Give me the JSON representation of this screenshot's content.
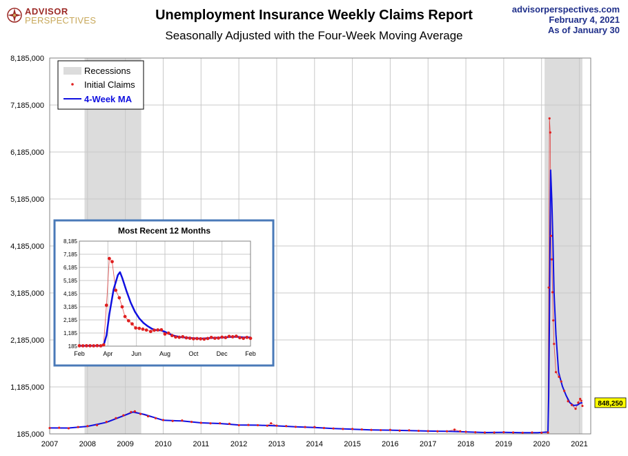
{
  "header": {
    "logo_line1": "ADVISOR",
    "logo_line2": "PERSPECTIVES",
    "title": "Unemployment Insurance Weekly Claims Report",
    "subtitle": "Seasonally Adjusted with the Four-Week Moving Average",
    "site": "advisorperspectives.com",
    "date": "February 4, 2021",
    "asof": "As of January 30"
  },
  "colors": {
    "recession": "#dcdcdc",
    "claims": "#e02020",
    "ma": "#1010e0",
    "inset_border": "#4a7ab8",
    "callout_bg": "#ffff00"
  },
  "chart_data": [
    {
      "type": "line",
      "title": "Unemployment Insurance Weekly Claims Report",
      "subtitle": "Seasonally Adjusted with the Four-Week Moving Average",
      "ylim": [
        185000,
        8185000
      ],
      "yticks": [
        185000,
        1185000,
        2185000,
        3185000,
        4185000,
        5185000,
        6185000,
        7185000,
        8185000
      ],
      "ytick_labels": [
        "185,000",
        "1,185,000",
        "2,185,000",
        "3,185,000",
        "4,185,000",
        "5,185,000",
        "6,185,000",
        "7,185,000",
        "8,185,000"
      ],
      "xlim": [
        2007.0,
        2021.3
      ],
      "xticks": [
        2007,
        2008,
        2009,
        2010,
        2011,
        2012,
        2013,
        2014,
        2015,
        2016,
        2017,
        2018,
        2019,
        2020,
        2021
      ],
      "xtick_labels": [
        "2007",
        "2008",
        "2009",
        "2010",
        "2011",
        "2012",
        "2013",
        "2014",
        "2015",
        "2016",
        "2017",
        "2018",
        "2019",
        "2020",
        "2021"
      ],
      "grid": true,
      "legend_position": "top-left",
      "legend": [
        "Recessions",
        "Initial Claims",
        "4-Week MA"
      ],
      "recessions": [
        [
          2007.92,
          2009.42
        ],
        [
          2020.08,
          2021.08
        ]
      ],
      "last_value_label": "848,250",
      "series": [
        {
          "name": "Initial Claims",
          "style": "dots",
          "points": [
            [
              2007.0,
              310000
            ],
            [
              2007.25,
              315000
            ],
            [
              2007.5,
              305000
            ],
            [
              2007.75,
              330000
            ],
            [
              2008.0,
              350000
            ],
            [
              2008.25,
              370000
            ],
            [
              2008.5,
              440000
            ],
            [
              2008.75,
              520000
            ],
            [
              2008.95,
              580000
            ],
            [
              2009.15,
              650000
            ],
            [
              2009.25,
              665000
            ],
            [
              2009.4,
              610000
            ],
            [
              2009.6,
              560000
            ],
            [
              2009.8,
              520000
            ],
            [
              2010.0,
              480000
            ],
            [
              2010.25,
              460000
            ],
            [
              2010.5,
              470000
            ],
            [
              2010.75,
              440000
            ],
            [
              2011.0,
              420000
            ],
            [
              2011.25,
              410000
            ],
            [
              2011.5,
              410000
            ],
            [
              2011.75,
              400000
            ],
            [
              2012.0,
              370000
            ],
            [
              2012.25,
              375000
            ],
            [
              2012.5,
              370000
            ],
            [
              2012.75,
              360000
            ],
            [
              2012.85,
              410000
            ],
            [
              2013.0,
              360000
            ],
            [
              2013.25,
              350000
            ],
            [
              2013.5,
              335000
            ],
            [
              2013.75,
              330000
            ],
            [
              2014.0,
              330000
            ],
            [
              2014.25,
              310000
            ],
            [
              2014.5,
              300000
            ],
            [
              2014.75,
              290000
            ],
            [
              2015.0,
              290000
            ],
            [
              2015.25,
              280000
            ],
            [
              2015.5,
              270000
            ],
            [
              2015.75,
              265000
            ],
            [
              2016.0,
              270000
            ],
            [
              2016.25,
              255000
            ],
            [
              2016.5,
              260000
            ],
            [
              2016.75,
              250000
            ],
            [
              2017.0,
              245000
            ],
            [
              2017.25,
              240000
            ],
            [
              2017.5,
              240000
            ],
            [
              2017.7,
              275000
            ],
            [
              2017.85,
              240000
            ],
            [
              2018.0,
              230000
            ],
            [
              2018.25,
              220000
            ],
            [
              2018.5,
              215000
            ],
            [
              2018.75,
              215000
            ],
            [
              2019.0,
              220000
            ],
            [
              2019.25,
              215000
            ],
            [
              2019.5,
              210000
            ],
            [
              2019.75,
              215000
            ],
            [
              2020.0,
              210000
            ],
            [
              2020.17,
              215000
            ],
            [
              2020.19,
              3300000
            ],
            [
              2020.21,
              6900000
            ],
            [
              2020.23,
              6600000
            ],
            [
              2020.25,
              4400000
            ],
            [
              2020.27,
              3900000
            ],
            [
              2020.29,
              3200000
            ],
            [
              2020.31,
              2600000
            ],
            [
              2020.33,
              2100000
            ],
            [
              2020.38,
              1500000
            ],
            [
              2020.46,
              1400000
            ],
            [
              2020.52,
              1300000
            ],
            [
              2020.6,
              1100000
            ],
            [
              2020.7,
              880000
            ],
            [
              2020.8,
              800000
            ],
            [
              2020.9,
              720000
            ],
            [
              2020.97,
              850000
            ],
            [
              2021.02,
              930000
            ],
            [
              2021.05,
              890000
            ],
            [
              2021.08,
              780000
            ]
          ]
        },
        {
          "name": "4-Week MA",
          "style": "line",
          "points": [
            [
              2007.0,
              312000
            ],
            [
              2007.5,
              310000
            ],
            [
              2008.0,
              345000
            ],
            [
              2008.5,
              430000
            ],
            [
              2008.95,
              570000
            ],
            [
              2009.2,
              650000
            ],
            [
              2009.5,
              600000
            ],
            [
              2010.0,
              475000
            ],
            [
              2010.5,
              460000
            ],
            [
              2011.0,
              420000
            ],
            [
              2011.5,
              405000
            ],
            [
              2012.0,
              375000
            ],
            [
              2012.5,
              370000
            ],
            [
              2013.0,
              355000
            ],
            [
              2013.5,
              335000
            ],
            [
              2014.0,
              320000
            ],
            [
              2014.5,
              300000
            ],
            [
              2015.0,
              285000
            ],
            [
              2015.5,
              270000
            ],
            [
              2016.0,
              265000
            ],
            [
              2016.5,
              255000
            ],
            [
              2017.0,
              245000
            ],
            [
              2017.5,
              240000
            ],
            [
              2018.0,
              228000
            ],
            [
              2018.5,
              215000
            ],
            [
              2019.0,
              218000
            ],
            [
              2019.5,
              212000
            ],
            [
              2019.9,
              212000
            ],
            [
              2020.17,
              225000
            ],
            [
              2020.19,
              1000000
            ],
            [
              2020.21,
              2700000
            ],
            [
              2020.24,
              5800000
            ],
            [
              2020.27,
              5200000
            ],
            [
              2020.3,
              4300000
            ],
            [
              2020.33,
              3200000
            ],
            [
              2020.38,
              2300000
            ],
            [
              2020.45,
              1500000
            ],
            [
              2020.55,
              1200000
            ],
            [
              2020.65,
              1000000
            ],
            [
              2020.75,
              850000
            ],
            [
              2020.85,
              790000
            ],
            [
              2020.95,
              800000
            ],
            [
              2021.02,
              840000
            ],
            [
              2021.08,
              848250
            ]
          ]
        }
      ]
    },
    {
      "type": "line",
      "title": "Most Recent 12 Months",
      "ylim": [
        185,
        8185
      ],
      "yticks": [
        185,
        1185,
        2185,
        3185,
        4185,
        5185,
        6185,
        7185,
        8185
      ],
      "ytick_labels": [
        "185",
        "1,185",
        "2,185",
        "3,185",
        "4,185",
        "5,185",
        "6,185",
        "7,185",
        "8,185"
      ],
      "xlim": [
        0,
        12
      ],
      "xticks": [
        0,
        2,
        4,
        6,
        8,
        10,
        12
      ],
      "xtick_labels": [
        "Feb",
        "Apr",
        "Jun",
        "Aug",
        "Oct",
        "Dec",
        "Feb"
      ],
      "grid": true,
      "series": [
        {
          "name": "Initial Claims",
          "style": "dots",
          "points": [
            [
              0.0,
              215
            ],
            [
              0.25,
              210
            ],
            [
              0.5,
              215
            ],
            [
              0.75,
              215
            ],
            [
              1.0,
              210
            ],
            [
              1.25,
              220
            ],
            [
              1.5,
              211
            ],
            [
              1.7,
              282
            ],
            [
              1.9,
              3300
            ],
            [
              2.1,
              6860
            ],
            [
              2.3,
              6620
            ],
            [
              2.55,
              4440
            ],
            [
              2.8,
              3870
            ],
            [
              3.0,
              3180
            ],
            [
              3.2,
              2440
            ],
            [
              3.45,
              2120
            ],
            [
              3.7,
              1880
            ],
            [
              3.95,
              1570
            ],
            [
              4.2,
              1540
            ],
            [
              4.45,
              1480
            ],
            [
              4.7,
              1410
            ],
            [
              5.0,
              1300
            ],
            [
              5.25,
              1400
            ],
            [
              5.5,
              1420
            ],
            [
              5.75,
              1430
            ],
            [
              6.0,
              1110
            ],
            [
              6.25,
              1180
            ],
            [
              6.5,
              990
            ],
            [
              6.75,
              880
            ],
            [
              7.0,
              860
            ],
            [
              7.25,
              900
            ],
            [
              7.5,
              820
            ],
            [
              7.75,
              790
            ],
            [
              8.0,
              750
            ],
            [
              8.25,
              760
            ],
            [
              8.5,
              740
            ],
            [
              8.75,
              720
            ],
            [
              9.0,
              770
            ],
            [
              9.25,
              850
            ],
            [
              9.5,
              790
            ],
            [
              9.75,
              800
            ],
            [
              10.0,
              870
            ],
            [
              10.25,
              840
            ],
            [
              10.5,
              930
            ],
            [
              10.75,
              900
            ],
            [
              11.0,
              940
            ],
            [
              11.25,
              830
            ],
            [
              11.5,
              780
            ],
            [
              11.75,
              850
            ],
            [
              12.0,
              780
            ]
          ]
        },
        {
          "name": "4-Week MA",
          "style": "line",
          "points": [
            [
              0.0,
              212
            ],
            [
              1.5,
              215
            ],
            [
              1.7,
              230
            ],
            [
              1.9,
              1000
            ],
            [
              2.1,
              2600
            ],
            [
              2.4,
              4500
            ],
            [
              2.7,
              5600
            ],
            [
              2.85,
              5820
            ],
            [
              3.0,
              5400
            ],
            [
              3.3,
              4400
            ],
            [
              3.6,
              3500
            ],
            [
              3.9,
              2800
            ],
            [
              4.2,
              2300
            ],
            [
              4.5,
              1950
            ],
            [
              4.8,
              1700
            ],
            [
              5.1,
              1500
            ],
            [
              5.4,
              1400
            ],
            [
              5.7,
              1390
            ],
            [
              6.0,
              1280
            ],
            [
              6.3,
              1120
            ],
            [
              6.6,
              990
            ],
            [
              7.0,
              890
            ],
            [
              7.5,
              830
            ],
            [
              8.0,
              790
            ],
            [
              8.5,
              760
            ],
            [
              9.0,
              790
            ],
            [
              9.5,
              820
            ],
            [
              10.0,
              840
            ],
            [
              10.5,
              880
            ],
            [
              11.0,
              900
            ],
            [
              11.5,
              860
            ],
            [
              12.0,
              848
            ]
          ]
        }
      ]
    }
  ]
}
